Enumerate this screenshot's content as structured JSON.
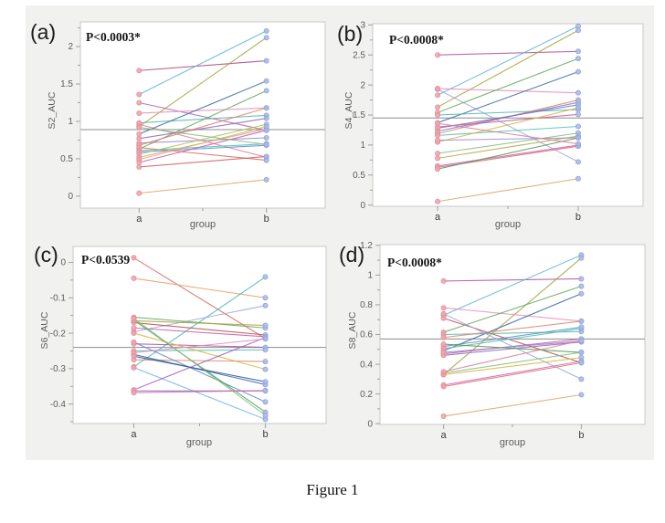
{
  "figure": {
    "caption": "Figure 1"
  },
  "style": {
    "canvas_bg": "#f1f1f0",
    "plot_bg": "#ffffff",
    "frame_color": "#c9c9c9",
    "ref_line_color": "#8c8c8c",
    "tick_color": "#a0a0a0",
    "tick_text_color": "#5c5c5c",
    "xtick_text_color": "#3c3c3c",
    "marker_a_fill": "#f2a3ab",
    "marker_a_stroke": "#de8e9b",
    "marker_b_fill": "#aab9e4",
    "marker_b_stroke": "#92a5d8"
  },
  "chart_data": [
    {
      "type": "line",
      "panel_label": "(a)",
      "p_label": "P<0.0003*",
      "ylabel": "S2_AUC",
      "xlabel": "group",
      "categories": [
        "a",
        "b"
      ],
      "ylim": [
        -0.16,
        2.33
      ],
      "ytick_values": [
        0,
        0.5,
        1,
        1.5,
        2
      ],
      "ytick_labels": [
        "0",
        "0.5",
        "1",
        "1.5",
        "2"
      ],
      "minor_step": 0.25,
      "ref_line": 0.89,
      "legend": "none",
      "series": [
        {
          "color": "#a8447c",
          "values": [
            1.68,
            1.81
          ]
        },
        {
          "color": "#5ab4d6",
          "values": [
            1.36,
            2.21
          ]
        },
        {
          "color": "#a3a33c",
          "values": [
            0.93,
            2.12
          ]
        },
        {
          "color": "#b05fb8",
          "values": [
            1.25,
            0.88
          ]
        },
        {
          "color": "#e88bb8",
          "values": [
            1.11,
            1.18
          ]
        },
        {
          "color": "#d9819f",
          "values": [
            0.96,
            0.52
          ]
        },
        {
          "color": "#49b8a8",
          "values": [
            0.98,
            1.08
          ]
        },
        {
          "color": "#63a85c",
          "values": [
            0.63,
            1.41
          ]
        },
        {
          "color": "#3a68a8",
          "values": [
            0.83,
            1.54
          ]
        },
        {
          "color": "#8a68b8",
          "values": [
            0.77,
            1.04
          ]
        },
        {
          "color": "#9a80d0",
          "values": [
            0.71,
            0.78
          ]
        },
        {
          "color": "#e2836a",
          "values": [
            0.68,
            1.18
          ]
        },
        {
          "color": "#d96a6a",
          "values": [
            0.65,
            0.48
          ]
        },
        {
          "color": "#52c0b4",
          "values": [
            0.61,
            0.7
          ]
        },
        {
          "color": "#6088c8",
          "values": [
            0.59,
            0.68
          ]
        },
        {
          "color": "#a6c455",
          "values": [
            0.56,
            0.96
          ]
        },
        {
          "color": "#e09ac2",
          "values": [
            0.52,
            0.9
          ]
        },
        {
          "color": "#d4b83e",
          "values": [
            0.49,
            0.93
          ]
        },
        {
          "color": "#c85aa0",
          "values": [
            0.45,
            0.88
          ]
        },
        {
          "color": "#cc5c5c",
          "values": [
            0.39,
            0.53
          ]
        },
        {
          "color": "#7fbf7f",
          "values": [
            0.92,
            0.69
          ]
        },
        {
          "color": "#e0a060",
          "values": [
            0.04,
            0.22
          ]
        }
      ]
    },
    {
      "type": "line",
      "panel_label": "(b)",
      "p_label": "P<0.0008*",
      "ylabel": "S4_AUC",
      "xlabel": "group",
      "categories": [
        "a",
        "b"
      ],
      "ylim": [
        -0.02,
        3.02
      ],
      "ytick_values": [
        0,
        0.5,
        1,
        1.5,
        2,
        2.5,
        3
      ],
      "ytick_labels": [
        "0",
        "0.5",
        "1",
        "1.5",
        "2",
        "2.5",
        "3"
      ],
      "minor_step": 0.25,
      "ref_line": 1.45,
      "legend": "none",
      "series": [
        {
          "color": "#b0519f",
          "values": [
            2.5,
            2.56
          ]
        },
        {
          "color": "#5ab4d6",
          "values": [
            1.83,
            2.98
          ]
        },
        {
          "color": "#a3a33c",
          "values": [
            1.63,
            2.91
          ]
        },
        {
          "color": "#9aa8d8",
          "values": [
            1.93,
            0.72
          ]
        },
        {
          "color": "#e88bb8",
          "values": [
            1.94,
            1.87
          ]
        },
        {
          "color": "#63a85c",
          "values": [
            1.54,
            2.44
          ]
        },
        {
          "color": "#3a68a8",
          "values": [
            1.37,
            2.22
          ]
        },
        {
          "color": "#49b8a8",
          "values": [
            1.5,
            1.59
          ]
        },
        {
          "color": "#e2836a",
          "values": [
            1.19,
            1.75
          ]
        },
        {
          "color": "#6088c8",
          "values": [
            1.23,
            1.71
          ]
        },
        {
          "color": "#8a68b8",
          "values": [
            1.28,
            1.67
          ]
        },
        {
          "color": "#c85aa0",
          "values": [
            1.3,
            1.51
          ]
        },
        {
          "color": "#52c0b4",
          "values": [
            1.16,
            1.31
          ]
        },
        {
          "color": "#d4b83e",
          "values": [
            1.05,
            1.62
          ]
        },
        {
          "color": "#7fbf7f",
          "values": [
            0.86,
            1.2
          ]
        },
        {
          "color": "#b5a642",
          "values": [
            0.78,
            1.15
          ]
        },
        {
          "color": "#9a80d0",
          "values": [
            1.08,
            1.12
          ]
        },
        {
          "color": "#d060b0",
          "values": [
            0.65,
            1.0
          ]
        },
        {
          "color": "#d96a6a",
          "values": [
            0.63,
            0.98
          ]
        },
        {
          "color": "#4e9a4e",
          "values": [
            0.6,
            1.12
          ]
        },
        {
          "color": "#d9819f",
          "values": [
            1.36,
            1.02
          ]
        },
        {
          "color": "#e0a060",
          "values": [
            0.06,
            0.44
          ]
        }
      ]
    },
    {
      "type": "line",
      "panel_label": "(c)",
      "p_label": "P<0.0539",
      "ylabel": "S6_AUC",
      "xlabel": "group",
      "categories": [
        "a",
        "b"
      ],
      "ylim": [
        -0.455,
        0.045
      ],
      "ytick_values": [
        0,
        -0.1,
        -0.2,
        -0.3,
        -0.4
      ],
      "ytick_labels": [
        "0",
        "-0.1",
        "-0.2",
        "-0.3",
        "-0.4"
      ],
      "minor_step": 0.05,
      "ref_line": -0.24,
      "legend": "none",
      "series": [
        {
          "color": "#d96a6a",
          "values": [
            0.013,
            -0.215
          ]
        },
        {
          "color": "#e0a060",
          "values": [
            -0.045,
            -0.1
          ]
        },
        {
          "color": "#45b8c0",
          "values": [
            -0.295,
            -0.041
          ]
        },
        {
          "color": "#9aa8d8",
          "values": [
            -0.196,
            -0.122
          ]
        },
        {
          "color": "#63a85c",
          "values": [
            -0.155,
            -0.185
          ]
        },
        {
          "color": "#b05050",
          "values": [
            -0.17,
            -0.205
          ]
        },
        {
          "color": "#a3a33c",
          "values": [
            -0.165,
            -0.178
          ]
        },
        {
          "color": "#c85aa0",
          "values": [
            -0.185,
            -0.21
          ]
        },
        {
          "color": "#b0519f",
          "values": [
            -0.23,
            -0.24
          ]
        },
        {
          "color": "#52c0b4",
          "values": [
            -0.25,
            -0.247
          ]
        },
        {
          "color": "#e2836a",
          "values": [
            -0.275,
            -0.28
          ]
        },
        {
          "color": "#d4b83e",
          "values": [
            -0.2,
            -0.302
          ]
        },
        {
          "color": "#3a68a8",
          "values": [
            -0.26,
            -0.345
          ]
        },
        {
          "color": "#6088c8",
          "values": [
            -0.225,
            -0.394
          ]
        },
        {
          "color": "#7ab8e0",
          "values": [
            -0.297,
            -0.443
          ]
        },
        {
          "color": "#a05fc8",
          "values": [
            -0.36,
            -0.212
          ]
        },
        {
          "color": "#8a68b8",
          "values": [
            -0.363,
            -0.363
          ]
        },
        {
          "color": "#4e9a4e",
          "values": [
            -0.163,
            -0.423
          ]
        },
        {
          "color": "#7fbf7f",
          "values": [
            -0.158,
            -0.432
          ]
        },
        {
          "color": "#e88bb8",
          "values": [
            -0.255,
            -0.216
          ]
        },
        {
          "color": "#2f5597",
          "values": [
            -0.265,
            -0.337
          ]
        },
        {
          "color": "#d060b0",
          "values": [
            -0.368,
            -0.362
          ]
        }
      ]
    },
    {
      "type": "line",
      "panel_label": "(d)",
      "p_label": "P<0.0008*",
      "ylabel": "S8_AUC",
      "xlabel": "group",
      "categories": [
        "a",
        "b"
      ],
      "ylim": [
        -0.005,
        1.205
      ],
      "ytick_values": [
        0,
        0.2,
        0.4,
        0.6,
        0.8,
        1,
        1.2
      ],
      "ytick_labels": [
        "0",
        "0.2",
        "0.4",
        "0.6",
        "0.8",
        "1",
        "1.2"
      ],
      "minor_step": 0.1,
      "ref_line": 0.57,
      "legend": "none",
      "series": [
        {
          "color": "#b0519f",
          "values": [
            0.96,
            0.975
          ]
        },
        {
          "color": "#5ab4d6",
          "values": [
            0.73,
            1.135
          ]
        },
        {
          "color": "#a3a33c",
          "values": [
            0.33,
            1.115
          ]
        },
        {
          "color": "#e88bb8",
          "values": [
            0.78,
            0.69
          ]
        },
        {
          "color": "#b05050",
          "values": [
            0.71,
            0.41
          ]
        },
        {
          "color": "#63a85c",
          "values": [
            0.615,
            0.925
          ]
        },
        {
          "color": "#3a68a8",
          "values": [
            0.49,
            0.875
          ]
        },
        {
          "color": "#49b8a8",
          "values": [
            0.6,
            0.62
          ]
        },
        {
          "color": "#e2836a",
          "values": [
            0.58,
            0.69
          ]
        },
        {
          "color": "#52c0b4",
          "values": [
            0.505,
            0.64
          ]
        },
        {
          "color": "#c85aa0",
          "values": [
            0.47,
            0.57
          ]
        },
        {
          "color": "#8a68b8",
          "values": [
            0.46,
            0.55
          ]
        },
        {
          "color": "#9aa8d8",
          "values": [
            0.74,
            0.3
          ]
        },
        {
          "color": "#7fbf7f",
          "values": [
            0.34,
            0.48
          ]
        },
        {
          "color": "#d4b83e",
          "values": [
            0.33,
            0.445
          ]
        },
        {
          "color": "#d060b0",
          "values": [
            0.26,
            0.42
          ]
        },
        {
          "color": "#d96a6a",
          "values": [
            0.25,
            0.41
          ]
        },
        {
          "color": "#9a80d0",
          "values": [
            0.48,
            0.555
          ]
        },
        {
          "color": "#6088c8",
          "values": [
            0.52,
            0.65
          ]
        },
        {
          "color": "#4e9a4e",
          "values": [
            0.535,
            0.48
          ]
        },
        {
          "color": "#d9819f",
          "values": [
            0.35,
            0.56
          ]
        },
        {
          "color": "#e0a060",
          "values": [
            0.05,
            0.195
          ]
        }
      ]
    }
  ]
}
